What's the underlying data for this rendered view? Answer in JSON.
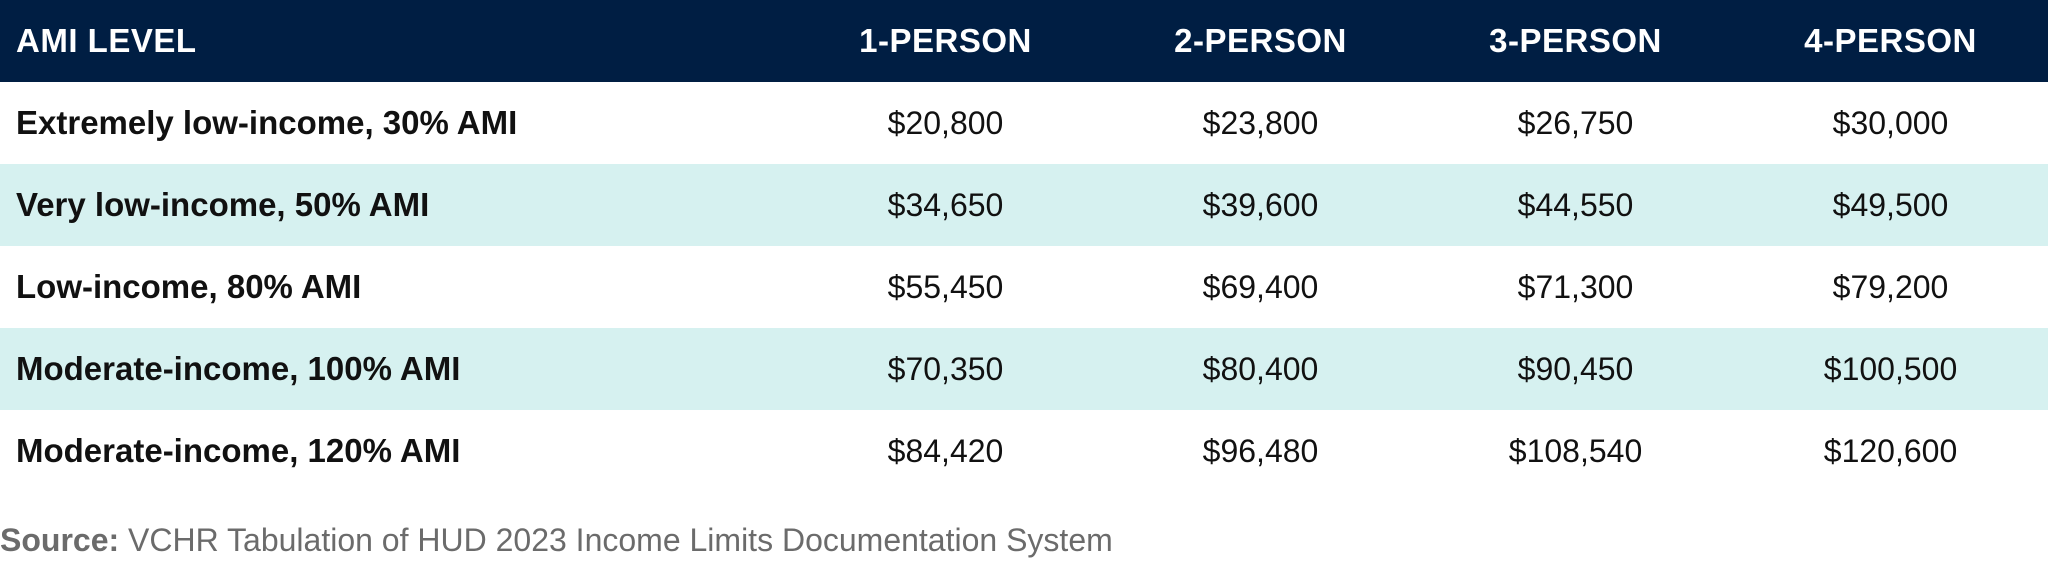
{
  "table": {
    "columns": [
      "AMI LEVEL",
      "1-PERSON",
      "2-PERSON",
      "3-PERSON",
      "4-PERSON"
    ],
    "rows": [
      {
        "label": "Extremely low-income, 30% AMI",
        "values": [
          "$20,800",
          "$23,800",
          "$26,750",
          "$30,000"
        ]
      },
      {
        "label": "Very low-income, 50% AMI",
        "values": [
          "$34,650",
          "$39,600",
          "$44,550",
          "$49,500"
        ]
      },
      {
        "label": "Low-income, 80% AMI",
        "values": [
          "$55,450",
          "$69,400",
          "$71,300",
          "$79,200"
        ]
      },
      {
        "label": "Moderate-income, 100% AMI",
        "values": [
          "$70,350",
          "$80,400",
          "$90,450",
          "$100,500"
        ]
      },
      {
        "label": "Moderate-income, 120% AMI",
        "values": [
          "$84,420",
          "$96,480",
          "$108,540",
          "$120,600"
        ]
      }
    ]
  },
  "source": {
    "label": "Source:",
    "text": " VCHR Tabulation of HUD 2023 Income Limits Documentation System"
  },
  "colors": {
    "header_bg": "#001e43",
    "header_text": "#ffffff",
    "shaded_row": "#d6f1f0"
  }
}
